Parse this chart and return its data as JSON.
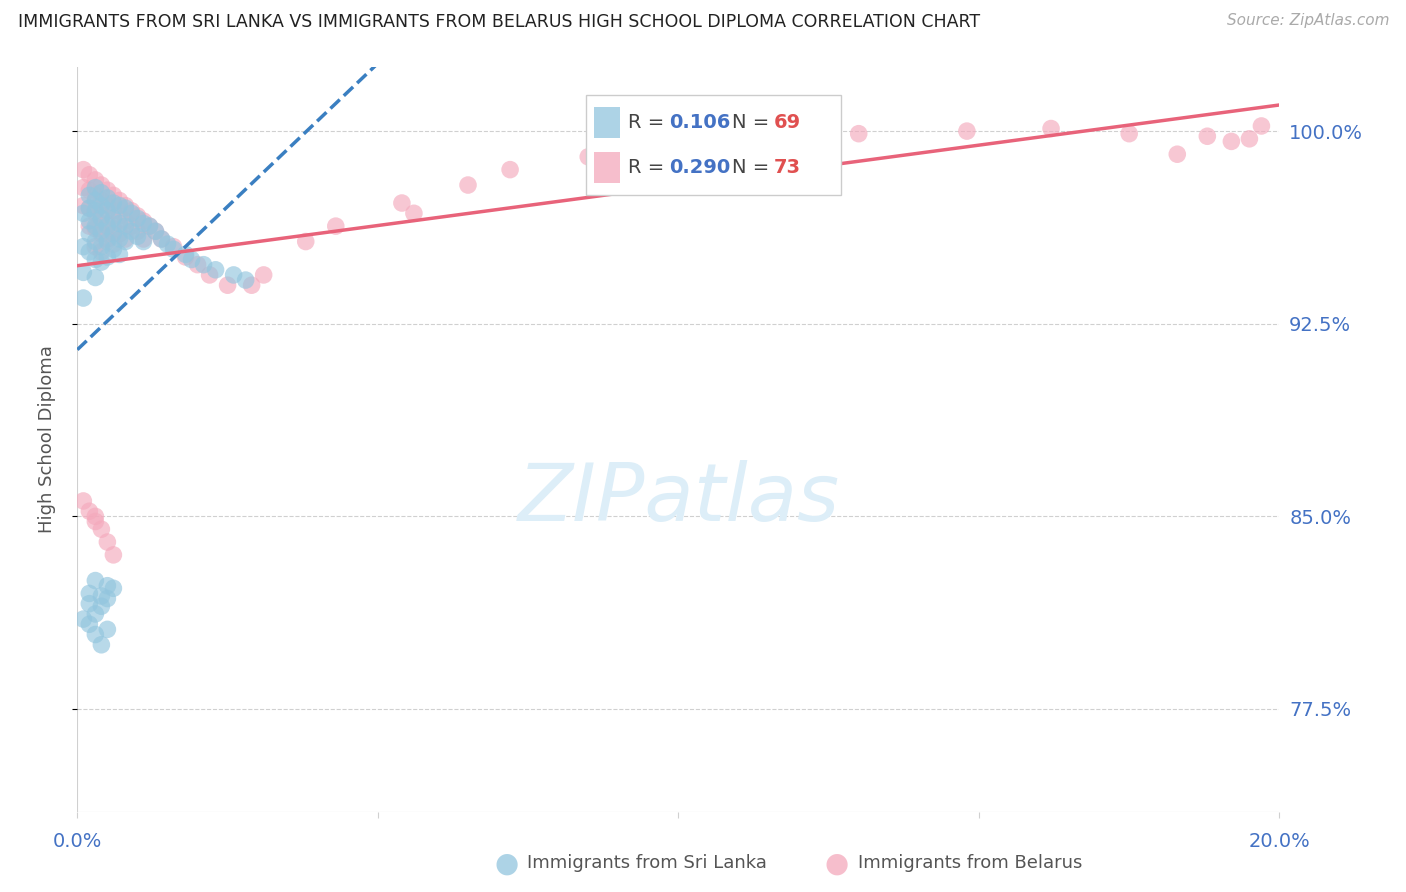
{
  "title": "IMMIGRANTS FROM SRI LANKA VS IMMIGRANTS FROM BELARUS HIGH SCHOOL DIPLOMA CORRELATION CHART",
  "source": "Source: ZipAtlas.com",
  "ylabel": "High School Diploma",
  "ytick_vals": [
    0.775,
    0.85,
    0.925,
    1.0
  ],
  "ytick_labels": [
    "77.5%",
    "85.0%",
    "92.5%",
    "100.0%"
  ],
  "xlim": [
    0.0,
    0.2
  ],
  "ylim": [
    0.735,
    1.025
  ],
  "watermark_text": "ZIPatlas",
  "sri_lanka_color": "#92c5de",
  "belarus_color": "#f4a9bc",
  "sri_lanka_line_color": "#3a7fc1",
  "belarus_line_color": "#e8637a",
  "grid_color": "#d0d0d0",
  "title_color": "#222222",
  "right_tick_color": "#4472c4",
  "sri_R": "0.106",
  "sri_N": "69",
  "bel_R": "0.290",
  "bel_N": "73",
  "sri_lanka_x": [
    0.001,
    0.001,
    0.001,
    0.001,
    0.002,
    0.002,
    0.002,
    0.002,
    0.002,
    0.003,
    0.003,
    0.003,
    0.003,
    0.003,
    0.003,
    0.003,
    0.004,
    0.004,
    0.004,
    0.004,
    0.004,
    0.004,
    0.005,
    0.005,
    0.005,
    0.005,
    0.005,
    0.006,
    0.006,
    0.006,
    0.006,
    0.007,
    0.007,
    0.007,
    0.007,
    0.008,
    0.008,
    0.008,
    0.009,
    0.009,
    0.01,
    0.01,
    0.011,
    0.011,
    0.012,
    0.013,
    0.014,
    0.015,
    0.016,
    0.018,
    0.019,
    0.021,
    0.023,
    0.026,
    0.028,
    0.002,
    0.003,
    0.004,
    0.005,
    0.006,
    0.001,
    0.002,
    0.003,
    0.004,
    0.005,
    0.002,
    0.003,
    0.004,
    0.005
  ],
  "sri_lanka_y": [
    0.968,
    0.955,
    0.945,
    0.935,
    0.975,
    0.97,
    0.965,
    0.96,
    0.953,
    0.978,
    0.973,
    0.969,
    0.963,
    0.957,
    0.95,
    0.943,
    0.976,
    0.971,
    0.966,
    0.961,
    0.955,
    0.949,
    0.974,
    0.969,
    0.963,
    0.957,
    0.951,
    0.972,
    0.966,
    0.96,
    0.954,
    0.971,
    0.964,
    0.958,
    0.952,
    0.97,
    0.963,
    0.957,
    0.968,
    0.961,
    0.966,
    0.959,
    0.964,
    0.957,
    0.963,
    0.961,
    0.958,
    0.956,
    0.954,
    0.952,
    0.95,
    0.948,
    0.946,
    0.944,
    0.942,
    0.82,
    0.825,
    0.815,
    0.818,
    0.822,
    0.81,
    0.816,
    0.812,
    0.819,
    0.823,
    0.808,
    0.804,
    0.8,
    0.806
  ],
  "belarus_x": [
    0.001,
    0.001,
    0.001,
    0.002,
    0.002,
    0.002,
    0.002,
    0.003,
    0.003,
    0.003,
    0.003,
    0.003,
    0.004,
    0.004,
    0.004,
    0.004,
    0.004,
    0.005,
    0.005,
    0.005,
    0.005,
    0.006,
    0.006,
    0.006,
    0.006,
    0.007,
    0.007,
    0.007,
    0.008,
    0.008,
    0.008,
    0.009,
    0.009,
    0.01,
    0.01,
    0.011,
    0.011,
    0.012,
    0.013,
    0.014,
    0.016,
    0.018,
    0.02,
    0.022,
    0.025,
    0.003,
    0.004,
    0.005,
    0.006,
    0.001,
    0.002,
    0.003,
    0.054,
    0.056,
    0.043,
    0.038,
    0.072,
    0.065,
    0.031,
    0.029,
    0.085,
    0.091,
    0.103,
    0.115,
    0.13,
    0.148,
    0.162,
    0.175,
    0.188,
    0.195,
    0.197,
    0.192,
    0.183
  ],
  "belarus_y": [
    0.985,
    0.978,
    0.971,
    0.983,
    0.977,
    0.97,
    0.963,
    0.981,
    0.975,
    0.968,
    0.962,
    0.955,
    0.979,
    0.973,
    0.967,
    0.96,
    0.953,
    0.977,
    0.971,
    0.964,
    0.958,
    0.975,
    0.969,
    0.962,
    0.956,
    0.973,
    0.967,
    0.96,
    0.971,
    0.965,
    0.958,
    0.969,
    0.963,
    0.967,
    0.961,
    0.965,
    0.958,
    0.963,
    0.961,
    0.958,
    0.955,
    0.951,
    0.948,
    0.944,
    0.94,
    0.85,
    0.845,
    0.84,
    0.835,
    0.856,
    0.852,
    0.848,
    0.972,
    0.968,
    0.963,
    0.957,
    0.985,
    0.979,
    0.944,
    0.94,
    0.99,
    0.993,
    0.996,
    0.998,
    0.999,
    1.0,
    1.001,
    0.999,
    0.998,
    0.997,
    1.002,
    0.996,
    0.991
  ]
}
